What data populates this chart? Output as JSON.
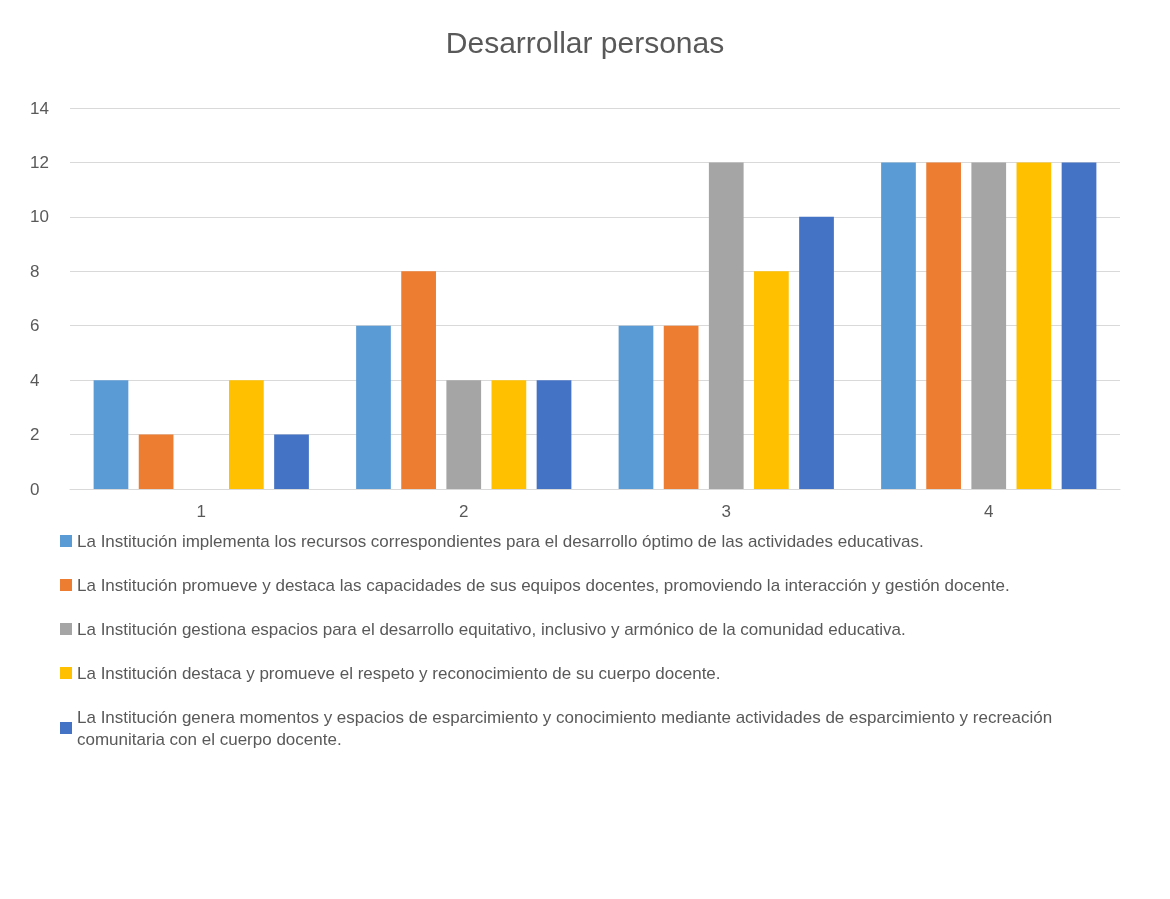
{
  "chart_data": {
    "type": "bar",
    "title": "Desarrollar personas",
    "categories": [
      "1",
      "2",
      "3",
      "4"
    ],
    "series": [
      {
        "name": "La Institución implementa los recursos correspondientes para el desarrollo óptimo de las actividades educativas.",
        "color": "#5b9bd5",
        "values": [
          4,
          6,
          6,
          12
        ]
      },
      {
        "name": "La Institución promueve y destaca las capacidades de sus equipos docentes, promoviendo la interacción y gestión docente.",
        "color": "#ed7d31",
        "values": [
          2,
          8,
          6,
          12
        ]
      },
      {
        "name": "La Institución gestiona espacios para el desarrollo equitativo, inclusivo y armónico de la comunidad educativa.",
        "color": "#a5a5a5",
        "values": [
          0,
          4,
          12,
          12
        ]
      },
      {
        "name": "La Institución destaca y promueve el respeto y reconocimiento de su cuerpo docente.",
        "color": "#ffc000",
        "values": [
          4,
          4,
          8,
          12
        ]
      },
      {
        "name": "La Institución genera momentos y espacios de esparcimiento y conocimiento mediante actividades de esparcimiento y recreación comunitaria con el cuerpo docente.",
        "color": "#4472c4",
        "values": [
          2,
          4,
          10,
          12
        ]
      }
    ],
    "ylim": [
      0,
      14
    ],
    "yticks": [
      0,
      2,
      4,
      6,
      8,
      10,
      12,
      14
    ],
    "grid": "y",
    "legend": "bottom"
  }
}
